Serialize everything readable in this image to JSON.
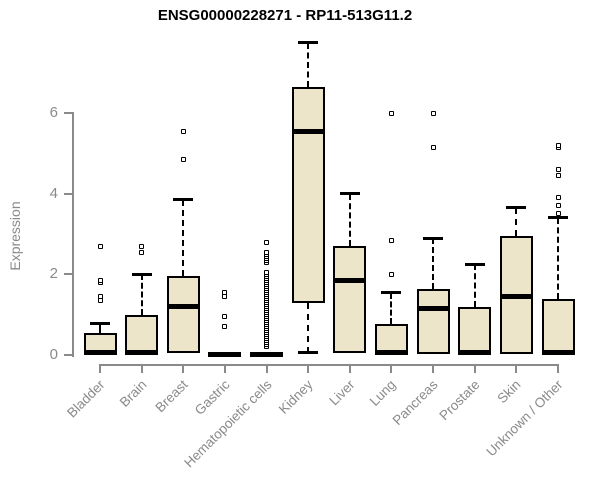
{
  "chart_data": {
    "type": "boxplot",
    "title": "ENSG00000228271 - RP11-513G11.2",
    "ylabel": "Expression",
    "xlabel": "",
    "y_ticks": [
      0,
      2,
      4,
      6
    ],
    "ylim": [
      0,
      8
    ],
    "grid": false,
    "legend": false,
    "x_tick_rotation": 45,
    "categories": [
      "Bladder",
      "Brain",
      "Breast",
      "Gastric",
      "Hematopoietic cells",
      "Kidney",
      "Liver",
      "Lung",
      "Pancreas",
      "Prostate",
      "Skin",
      "Unknown / Other"
    ],
    "boxes": [
      {
        "category": "Bladder",
        "whisker_low": 0,
        "q1": 0,
        "median": 0.05,
        "q3": 0.55,
        "whisker_high": 0.78,
        "outliers": [
          1.35,
          1.45,
          1.8,
          1.85,
          2.7
        ]
      },
      {
        "category": "Brain",
        "whisker_low": 0,
        "q1": 0,
        "median": 0.05,
        "q3": 1.0,
        "whisker_high": 2.0,
        "outliers": [
          2.55,
          2.7
        ]
      },
      {
        "category": "Breast",
        "whisker_low": 0.05,
        "q1": 0.05,
        "median": 1.2,
        "q3": 1.95,
        "whisker_high": 3.85,
        "outliers": [
          4.85,
          5.55
        ]
      },
      {
        "category": "Gastric",
        "whisker_low": 0,
        "q1": 0,
        "median": 0.02,
        "q3": 0.04,
        "whisker_high": 0.04,
        "outliers": [
          0.7,
          0.95,
          1.45,
          1.55
        ]
      },
      {
        "category": "Hematopoietic cells",
        "whisker_low": 0,
        "q1": 0,
        "median": 0.02,
        "q3": 0.04,
        "whisker_high": 0.04,
        "outliers": [
          0.2,
          0.25,
          0.3,
          0.35,
          0.4,
          0.45,
          0.5,
          0.55,
          0.6,
          0.65,
          0.7,
          0.75,
          0.8,
          0.85,
          0.9,
          0.95,
          1.0,
          1.05,
          1.1,
          1.15,
          1.2,
          1.25,
          1.3,
          1.35,
          1.4,
          1.45,
          1.5,
          1.55,
          1.6,
          1.65,
          1.7,
          1.75,
          1.8,
          1.85,
          1.9,
          1.95,
          2.0,
          2.05,
          2.3,
          2.35,
          2.4,
          2.45,
          2.5,
          2.55,
          2.8
        ]
      },
      {
        "category": "Kidney",
        "whisker_low": 0.05,
        "q1": 1.3,
        "median": 5.55,
        "q3": 6.65,
        "whisker_high": 7.75,
        "outliers": []
      },
      {
        "category": "Liver",
        "whisker_low": 0.05,
        "q1": 0.05,
        "median": 1.85,
        "q3": 2.7,
        "whisker_high": 4.0,
        "outliers": []
      },
      {
        "category": "Lung",
        "whisker_low": 0,
        "q1": 0,
        "median": 0.05,
        "q3": 0.78,
        "whisker_high": 1.55,
        "outliers": [
          2.0,
          2.85,
          6.0
        ]
      },
      {
        "category": "Pancreas",
        "whisker_low": 0.03,
        "q1": 0.03,
        "median": 1.15,
        "q3": 1.65,
        "whisker_high": 2.9,
        "outliers": [
          5.15,
          6.0
        ]
      },
      {
        "category": "Prostate",
        "whisker_low": 0,
        "q1": 0,
        "median": 0.05,
        "q3": 1.2,
        "whisker_high": 2.25,
        "outliers": []
      },
      {
        "category": "Skin",
        "whisker_low": 0.02,
        "q1": 0.02,
        "median": 1.45,
        "q3": 2.95,
        "whisker_high": 3.65,
        "outliers": []
      },
      {
        "category": "Unknown / Other",
        "whisker_low": 0,
        "q1": 0,
        "median": 0.05,
        "q3": 1.4,
        "whisker_high": 3.4,
        "outliers": [
          3.5,
          3.7,
          3.9,
          4.45,
          4.6,
          5.15,
          5.2
        ]
      }
    ],
    "colors": {
      "box_fill": "#ECE5C9",
      "box_border": "#000000",
      "median": "#000000",
      "whisker": "#000000",
      "outlier_border": "#000000",
      "axis": "#8A8A8A",
      "tick_label": "#8A8A8A",
      "title": "#000000",
      "background": "#FFFFFF"
    }
  }
}
